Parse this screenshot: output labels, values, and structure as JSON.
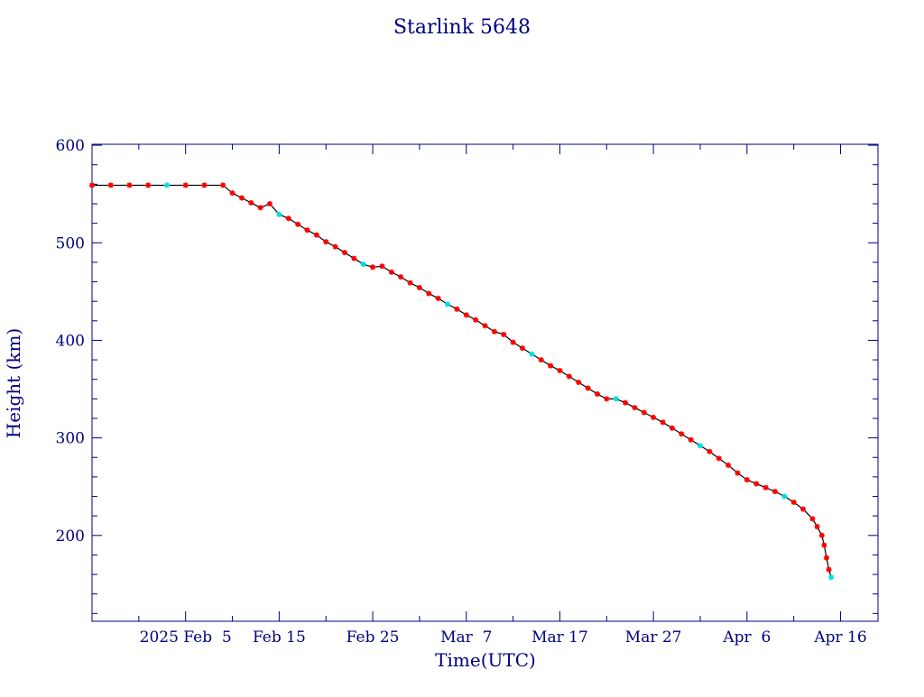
{
  "chart_data": {
    "type": "scatter",
    "title": "Starlink 5648",
    "xlabel": "Time(UTC)",
    "ylabel": "Height (km)",
    "x_tick_labels": [
      "2025 Feb  5",
      "Feb 15",
      "Feb 25",
      "Mar  7",
      "Mar 17",
      "Mar 27",
      "Apr  6",
      "Apr 16"
    ],
    "x_tick_dates": [
      "2025-02-05",
      "2025-02-15",
      "2025-02-25",
      "2025-03-07",
      "2025-03-17",
      "2025-03-27",
      "2025-04-06",
      "2025-04-16"
    ],
    "y_tick_labels": [
      "200",
      "300",
      "400",
      "500",
      "600"
    ],
    "y_ticks": [
      200,
      300,
      400,
      500,
      600
    ],
    "xlim": [
      "2025-01-26",
      "2025-04-20"
    ],
    "ylim": [
      112,
      601
    ],
    "grid": false,
    "series": [
      {
        "marker": "*",
        "colors": [
          "#ff0000",
          "#00e0e0"
        ],
        "line_color": "#000000",
        "points": [
          [
            "2025-01-26",
            559
          ],
          [
            "2025-01-28",
            559
          ],
          [
            "2025-01-30",
            559
          ],
          [
            "2025-02-01",
            559
          ],
          [
            "2025-02-03",
            559
          ],
          [
            "2025-02-05",
            559
          ],
          [
            "2025-02-07",
            559
          ],
          [
            "2025-02-09",
            559
          ],
          [
            "2025-02-10",
            551
          ],
          [
            "2025-02-11",
            546
          ],
          [
            "2025-02-12",
            541
          ],
          [
            "2025-02-13",
            536
          ],
          [
            "2025-02-14",
            540
          ],
          [
            "2025-02-15",
            529
          ],
          [
            "2025-02-16",
            525
          ],
          [
            "2025-02-17",
            519
          ],
          [
            "2025-02-18",
            513
          ],
          [
            "2025-02-19",
            508
          ],
          [
            "2025-02-20",
            501
          ],
          [
            "2025-02-21",
            496
          ],
          [
            "2025-02-22",
            490
          ],
          [
            "2025-02-23",
            484
          ],
          [
            "2025-02-24",
            478
          ],
          [
            "2025-02-25",
            475
          ],
          [
            "2025-02-26",
            476
          ],
          [
            "2025-02-27",
            470
          ],
          [
            "2025-02-28",
            465
          ],
          [
            "2025-03-01",
            459
          ],
          [
            "2025-03-02",
            454
          ],
          [
            "2025-03-03",
            448
          ],
          [
            "2025-03-04",
            443
          ],
          [
            "2025-03-05",
            437
          ],
          [
            "2025-03-06",
            432
          ],
          [
            "2025-03-07",
            426
          ],
          [
            "2025-03-08",
            421
          ],
          [
            "2025-03-09",
            415
          ],
          [
            "2025-03-10",
            409
          ],
          [
            "2025-03-11",
            406
          ],
          [
            "2025-03-12",
            398
          ],
          [
            "2025-03-13",
            392
          ],
          [
            "2025-03-14",
            386
          ],
          [
            "2025-03-15",
            380
          ],
          [
            "2025-03-16",
            374
          ],
          [
            "2025-03-17",
            369
          ],
          [
            "2025-03-18",
            363
          ],
          [
            "2025-03-19",
            357
          ],
          [
            "2025-03-20",
            351
          ],
          [
            "2025-03-21",
            345
          ],
          [
            "2025-03-22",
            340
          ],
          [
            "2025-03-23",
            340
          ],
          [
            "2025-03-24",
            336
          ],
          [
            "2025-03-25",
            331
          ],
          [
            "2025-03-26",
            326
          ],
          [
            "2025-03-27",
            321
          ],
          [
            "2025-03-28",
            316
          ],
          [
            "2025-03-29",
            310
          ],
          [
            "2025-03-30",
            304
          ],
          [
            "2025-03-31",
            298
          ],
          [
            "2025-04-01",
            292
          ],
          [
            "2025-04-02",
            286
          ],
          [
            "2025-04-03",
            279
          ],
          [
            "2025-04-04",
            272
          ],
          [
            "2025-04-05",
            264
          ],
          [
            "2025-04-06",
            257
          ],
          [
            "2025-04-07",
            253
          ],
          [
            "2025-04-08",
            249
          ],
          [
            "2025-04-09",
            245
          ],
          [
            "2025-04-10",
            240
          ],
          [
            "2025-04-11",
            234
          ],
          [
            "2025-04-12",
            227
          ],
          [
            "2025-04-13",
            217
          ],
          [
            "2025-04-13T12:00",
            209
          ],
          [
            "2025-04-14",
            200
          ],
          [
            "2025-04-14T06:00",
            190
          ],
          [
            "2025-04-14T12:00",
            177
          ],
          [
            "2025-04-14T18:00",
            165
          ],
          [
            "2025-04-15",
            157
          ]
        ]
      }
    ]
  }
}
